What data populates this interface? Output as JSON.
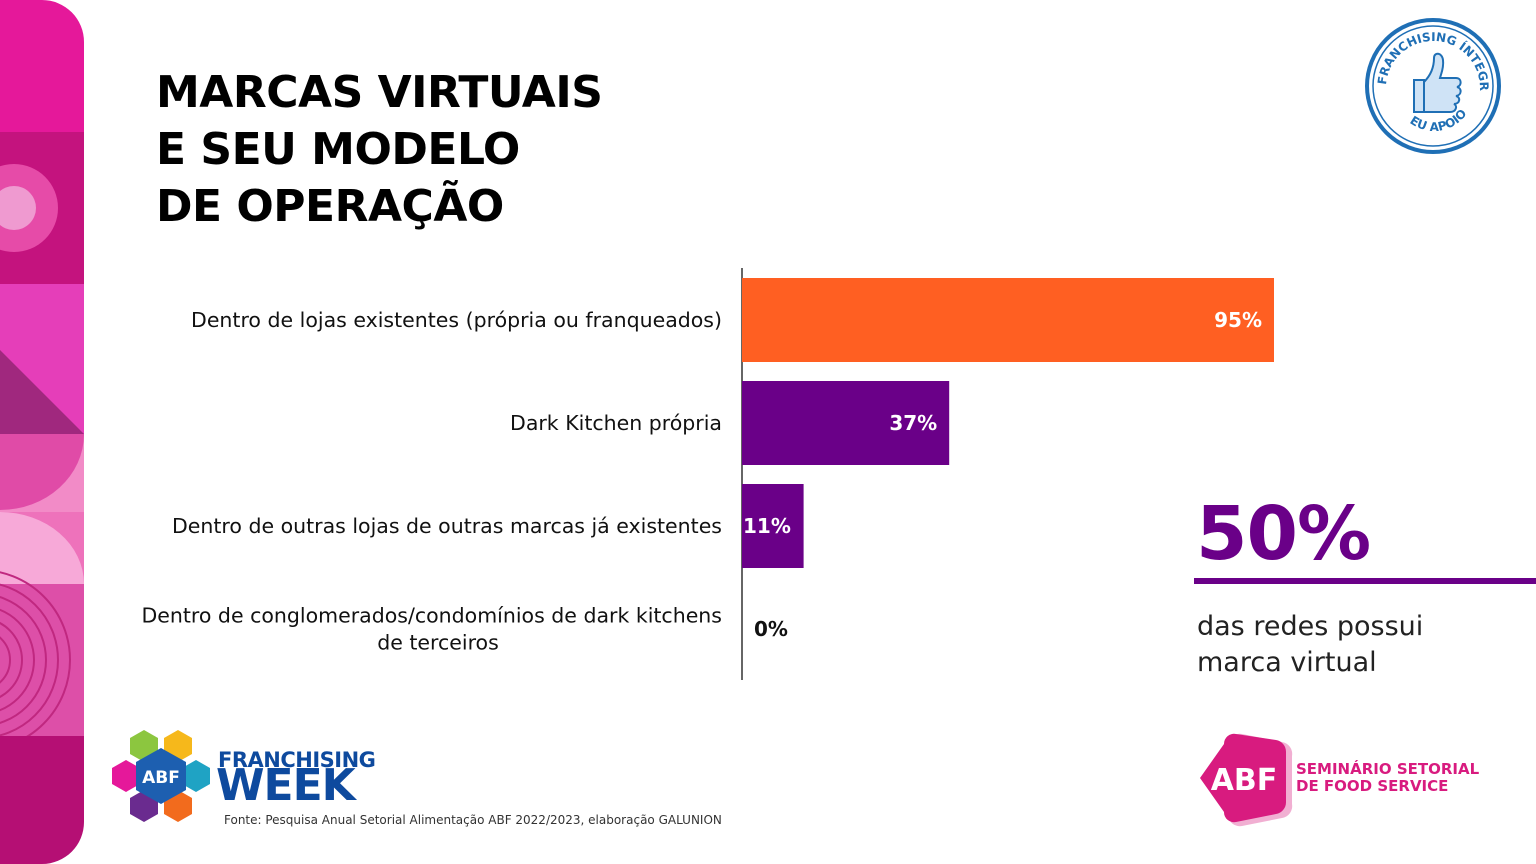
{
  "title": "MARCAS VIRTUAIS\nE SEU MODELO\nDE OPERAÇÃO",
  "chart_data": {
    "type": "bar",
    "orientation": "horizontal",
    "categories": [
      [
        "Dentro de lojas existentes (própria ou franqueados)"
      ],
      [
        "Dark Kitchen própria"
      ],
      [
        "Dentro de outras lojas de outras marcas já existentes"
      ],
      [
        "Dentro de conglomerados/condomínios de dark kitchens",
        "de terceiros"
      ]
    ],
    "values": [
      95,
      37,
      11,
      0
    ],
    "value_labels": [
      "95%",
      "37%",
      "11%",
      "0%"
    ],
    "colors": [
      "#ff5f22",
      "#6a0088",
      "#6a0088",
      "#6a0088"
    ],
    "xlim": [
      0,
      100
    ],
    "grid": false,
    "legend": "none"
  },
  "highlight": {
    "value": "50%",
    "caption": "das redes possui\nmarca virtual",
    "color": "#6a0088"
  },
  "stamp": {
    "text_top": "FRANCHISING ÍNTEGRO",
    "text_bottom": "EU APOIO",
    "icon": "thumbs-up-icon",
    "color": "#1f6fb5"
  },
  "footer": {
    "logo_left": {
      "badge": "ABF",
      "line1": "FRANCHISING",
      "line2": "WEEK"
    },
    "source": "Fonte: Pesquisa Anual Setorial Alimentação ABF 2022/2023, elaboração GALUNION",
    "logo_right": {
      "badge": "ABF",
      "line1": "SEMINÁRIO SETORIAL\nDE FOOD SERVICE"
    }
  }
}
